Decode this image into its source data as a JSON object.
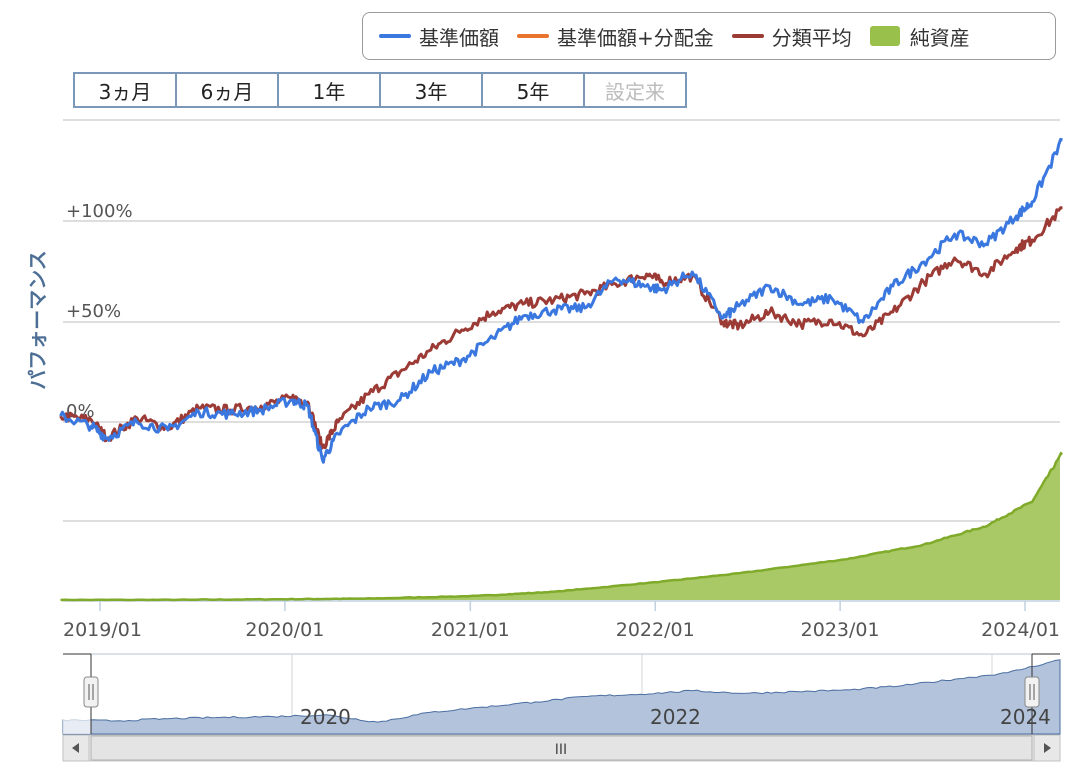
{
  "legend": {
    "items": [
      {
        "label": "基準価額",
        "color": "#3a78e0",
        "kind": "line"
      },
      {
        "label": "基準価額+分配金",
        "color": "#e8742e",
        "kind": "line"
      },
      {
        "label": "分類平均",
        "color": "#9c3b36",
        "kind": "line"
      },
      {
        "label": "純資産",
        "color": "#98c04a",
        "kind": "area"
      }
    ]
  },
  "range_selector": {
    "buttons": [
      {
        "label": "3ヵ月",
        "enabled": true
      },
      {
        "label": "6ヵ月",
        "enabled": true
      },
      {
        "label": "1年",
        "enabled": true
      },
      {
        "label": "3年",
        "enabled": true
      },
      {
        "label": "5年",
        "enabled": true
      },
      {
        "label": "設定来",
        "enabled": false
      }
    ]
  },
  "navigator": {
    "labels": [
      "2020",
      "2022",
      "2024"
    ],
    "scrollbar_grip": "III"
  },
  "chart_data": {
    "type": "line",
    "ylabel": "パフォーマンス",
    "x_range": [
      "2018-10",
      "2024-03"
    ],
    "x_tick_labels": [
      "2019/01",
      "2020/01",
      "2021/01",
      "2022/01",
      "2023/01",
      "2024/01"
    ],
    "y_tick_labels": [
      "0%",
      "+50%",
      "+100%"
    ],
    "y_unit": "%",
    "ylim": [
      -90,
      150
    ],
    "grid": true,
    "legend_position": "top-right",
    "x_dates": [
      "2018-10",
      "2018-12",
      "2019-01",
      "2019-03",
      "2019-05",
      "2019-07",
      "2019-09",
      "2019-11",
      "2020-01",
      "2020-02",
      "2020-03",
      "2020-04",
      "2020-06",
      "2020-08",
      "2020-10",
      "2020-12",
      "2021-02",
      "2021-04",
      "2021-06",
      "2021-08",
      "2021-10",
      "2021-12",
      "2022-01",
      "2022-03",
      "2022-05",
      "2022-06",
      "2022-08",
      "2022-10",
      "2022-12",
      "2023-02",
      "2023-04",
      "2023-06",
      "2023-08",
      "2023-10",
      "2023-12",
      "2024-01",
      "2024-03"
    ],
    "series": [
      {
        "name": "基準価額",
        "color": "#3a78e0",
        "values": [
          3,
          -2,
          -8,
          0,
          -4,
          5,
          4,
          6,
          11,
          8,
          -19,
          -6,
          7,
          11,
          25,
          31,
          42,
          53,
          56,
          57,
          72,
          68,
          66,
          75,
          52,
          58,
          68,
          59,
          62,
          50,
          68,
          80,
          94,
          89,
          103,
          110,
          141
        ]
      },
      {
        "name": "分類平均",
        "color": "#9c3b36",
        "values": [
          3,
          1,
          -8,
          2,
          -3,
          7,
          6,
          8,
          12,
          10,
          -13,
          0,
          14,
          25,
          36,
          46,
          55,
          59,
          61,
          64,
          69,
          74,
          70,
          73,
          50,
          48,
          55,
          49,
          51,
          43,
          55,
          70,
          82,
          74,
          87,
          91,
          107
        ]
      },
      {
        "name": "基準価額+分配金",
        "color": "#e8742e",
        "values": []
      }
    ],
    "net_assets": {
      "name": "純資産",
      "color": "#98c04a",
      "x": [
        "2018-10",
        "2019-06",
        "2020-01",
        "2020-06",
        "2021-01",
        "2021-06",
        "2022-01",
        "2022-06",
        "2023-01",
        "2023-06",
        "2023-10",
        "2024-01",
        "2024-03"
      ],
      "values": [
        0,
        0.05,
        0.2,
        0.35,
        1,
        2,
        4.5,
        6.5,
        10,
        13.5,
        18,
        24,
        36
      ]
    },
    "navigator_series": [
      0,
      -2,
      3,
      6,
      8,
      12,
      -5,
      18,
      30,
      42,
      55,
      60,
      68,
      62,
      66,
      70,
      80,
      95,
      110,
      140
    ]
  }
}
